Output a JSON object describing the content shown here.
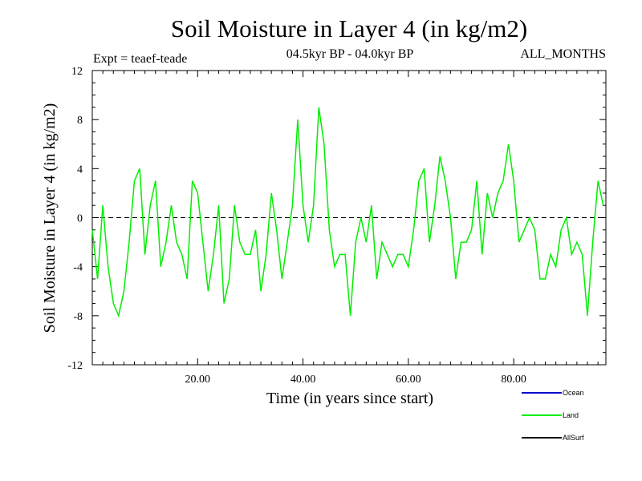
{
  "chart_data": {
    "type": "line",
    "title": "Soil Moisture in Layer 4 (in kg/m2)",
    "subtitle_left": "Expt = teaef-teade",
    "subtitle_center": "04.5kyr BP - 04.0kyr BP",
    "subtitle_right": "ALL_MONTHS",
    "xlabel": "Time (in years since start)",
    "ylabel": "Soil Moisture in Layer 4 (in kg/m2)",
    "xlim": [
      0,
      97.5
    ],
    "ylim": [
      -12,
      12
    ],
    "x_ticks": [
      20,
      40,
      60,
      80
    ],
    "x_tick_labels": [
      "20.00",
      "40.00",
      "60.00",
      "80.00"
    ],
    "y_ticks": [
      -12,
      -8,
      -4,
      0,
      4,
      8,
      12
    ],
    "y_tick_labels": [
      "-12",
      "-8",
      "-4",
      "0",
      "4",
      "8",
      "12"
    ],
    "reference_line": 0,
    "legend": [
      {
        "name": "Ocean",
        "color": "#0000cc"
      },
      {
        "name": "Land",
        "color": "#00ee00"
      },
      {
        "name": "AllSurf",
        "color": "#000000"
      }
    ],
    "series": [
      {
        "name": "Land",
        "color": "#00ee00",
        "x": [
          0,
          1,
          2,
          3,
          4,
          5,
          6,
          7,
          8,
          9,
          10,
          11,
          12,
          13,
          14,
          15,
          16,
          17,
          18,
          19,
          20,
          21,
          22,
          23,
          24,
          25,
          26,
          27,
          28,
          29,
          30,
          31,
          32,
          33,
          34,
          35,
          36,
          37,
          38,
          39,
          40,
          41,
          42,
          43,
          44,
          45,
          46,
          47,
          48,
          49,
          50,
          51,
          52,
          53,
          54,
          55,
          56,
          57,
          58,
          59,
          60,
          61,
          62,
          63,
          64,
          65,
          66,
          67,
          68,
          69,
          70,
          71,
          72,
          73,
          74,
          75,
          76,
          77,
          78,
          79,
          80,
          81,
          82,
          83,
          84,
          85,
          86,
          87,
          88,
          89,
          90,
          91,
          92,
          93,
          94,
          95,
          96,
          97
        ],
        "values": [
          -1,
          -5,
          1,
          -4,
          -7,
          -8,
          -6,
          -2,
          3,
          4,
          -3,
          1,
          3,
          -4,
          -2,
          1,
          -2,
          -3,
          -5,
          3,
          2,
          -2,
          -6,
          -3,
          1,
          -7,
          -5,
          1,
          -2,
          -3,
          -3,
          -1,
          -6,
          -3,
          2,
          -1,
          -5,
          -2,
          1,
          8,
          1,
          -2,
          1,
          9,
          6,
          -1,
          -4,
          -3,
          -3,
          -8,
          -2,
          0,
          -2,
          1,
          -5,
          -2,
          -3,
          -4,
          -3,
          -3,
          -4,
          -1,
          3,
          4,
          -2,
          1,
          5,
          3,
          0,
          -5,
          -2,
          -2,
          -1,
          3,
          -3,
          2,
          0,
          2,
          3,
          6,
          3,
          -2,
          -1,
          0,
          -1,
          -5,
          -5,
          -3,
          -4,
          -1,
          0,
          -3,
          -2,
          -3,
          -8,
          -2,
          3,
          1
        ]
      }
    ]
  }
}
